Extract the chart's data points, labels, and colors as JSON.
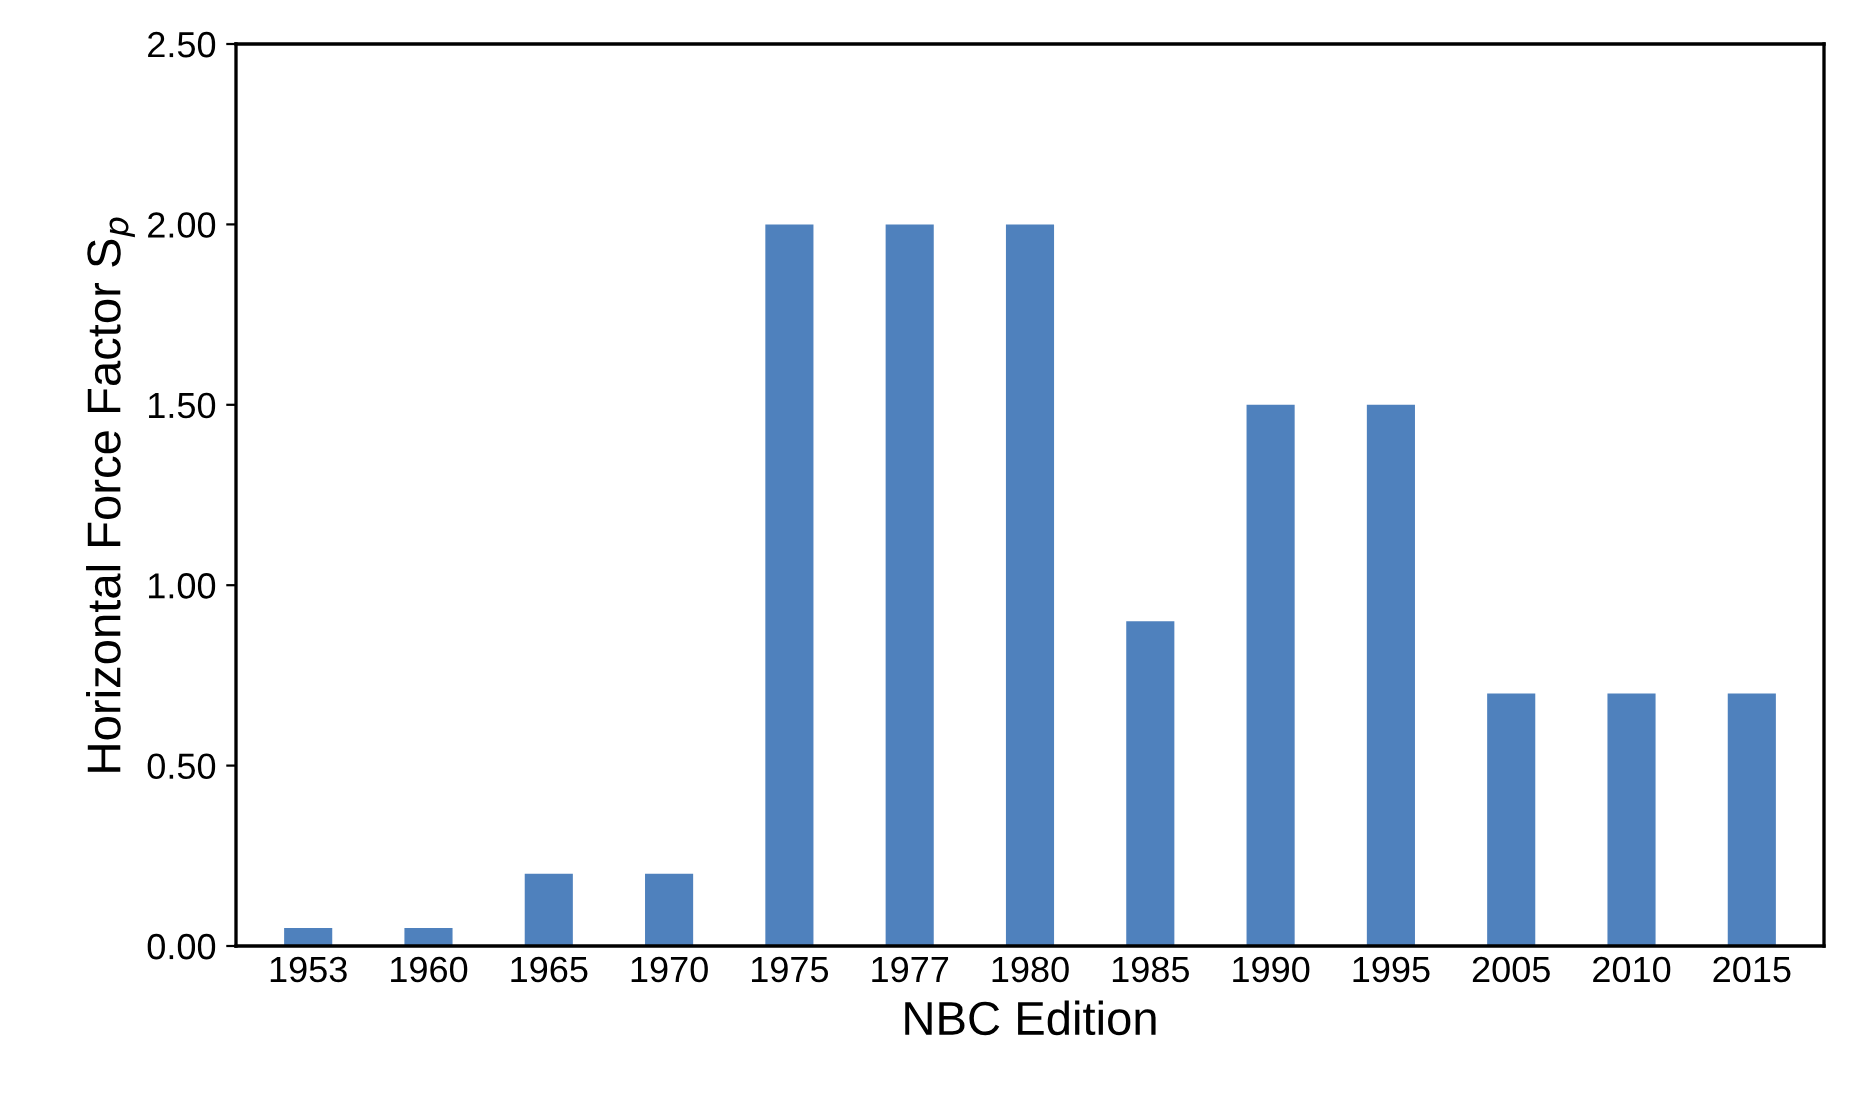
{
  "chart_data": {
    "type": "bar",
    "xlabel": "NBC Edition",
    "ylabel": "Horizontal Force Factor S$_{p}$",
    "categories": [
      "1953",
      "1960",
      "1965",
      "1970",
      "1975",
      "1977",
      "1980",
      "1985",
      "1990",
      "1995",
      "2005",
      "2010",
      "2015"
    ],
    "values": [
      0.05,
      0.05,
      0.2,
      0.2,
      2.0,
      2.0,
      2.0,
      0.9,
      1.5,
      1.5,
      0.7,
      0.7,
      0.7
    ],
    "color": "#4f81bd",
    "ylim": [
      0,
      2.5
    ],
    "yticks": [
      {
        "value": 0,
        "label": "0.00"
      },
      {
        "value": 0.5,
        "label": "0.50"
      },
      {
        "value": 1.0,
        "label": "1.00"
      },
      {
        "value": 1.5,
        "label": "1.50"
      },
      {
        "value": 2.0,
        "label": "2.00"
      },
      {
        "value": 2.5,
        "label": "2.50"
      }
    ],
    "grid": false,
    "legend": false
  }
}
